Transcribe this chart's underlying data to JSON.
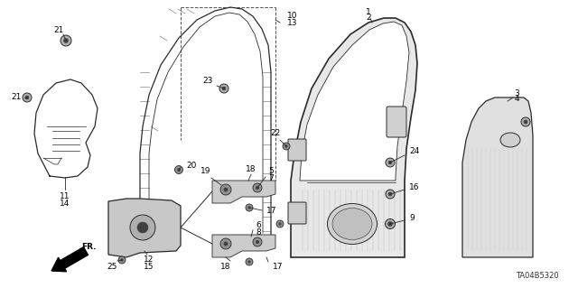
{
  "bg_color": "#ffffff",
  "line_color": "#2a2a2a",
  "part_code": "TA04B5320",
  "fig_width": 6.4,
  "fig_height": 3.19,
  "dpi": 100
}
